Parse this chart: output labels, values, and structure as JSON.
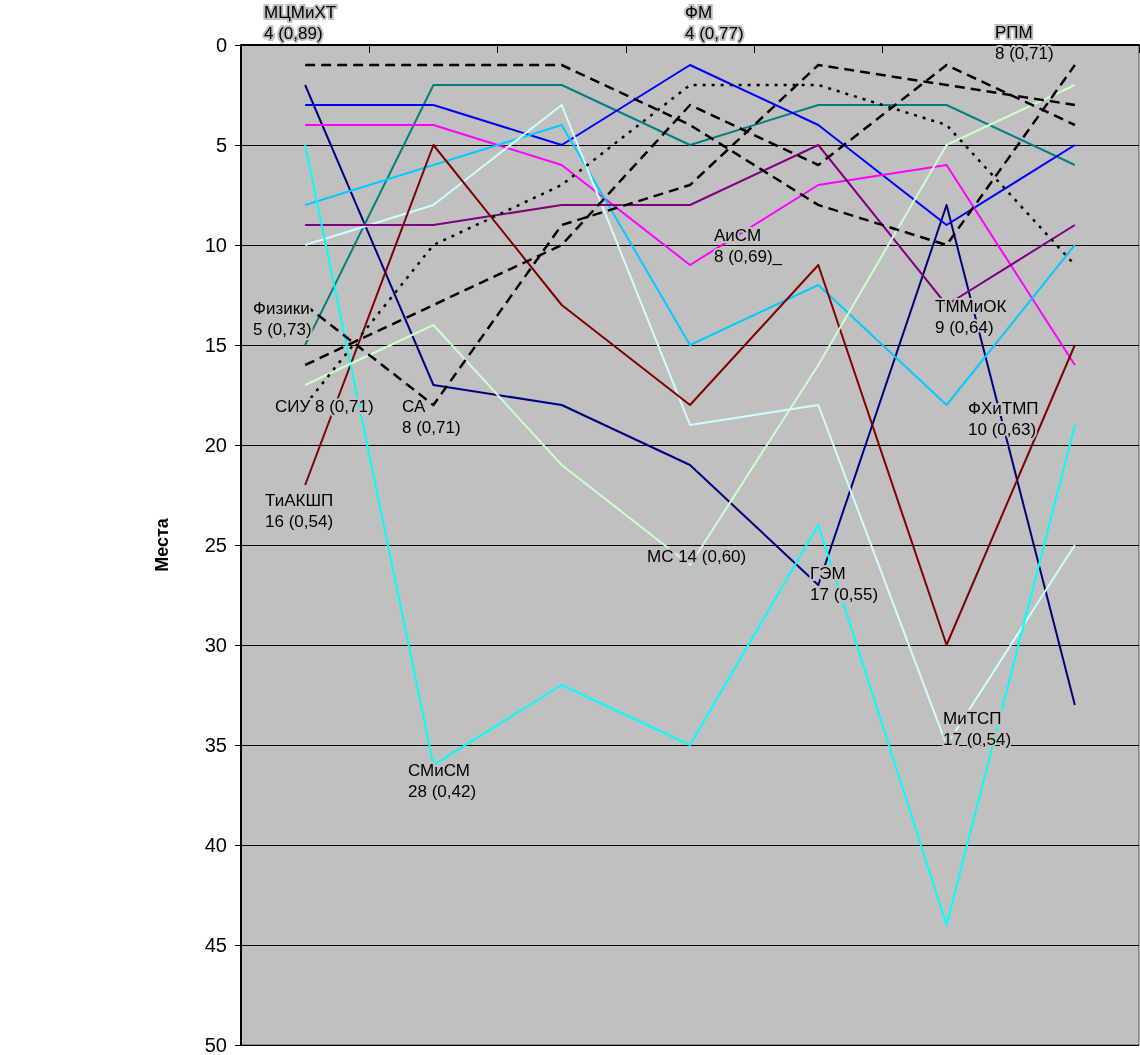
{
  "chart_data": {
    "type": "line",
    "ylabel": "Места",
    "categories": [
      null,
      null,
      null,
      null,
      null,
      null,
      null
    ],
    "ylim": [
      50,
      0
    ],
    "yticks": [
      0,
      5,
      10,
      15,
      20,
      25,
      30,
      35,
      40,
      45,
      50
    ],
    "grid": "y",
    "marker": "none",
    "line_style": "solid",
    "series": [
      {
        "color": "#000080",
        "values": [
          2,
          17,
          18,
          21,
          27,
          8,
          33
        ]
      },
      {
        "color": "#008080",
        "values": [
          15,
          2,
          2,
          5,
          3,
          3,
          6
        ]
      },
      {
        "color": "#0000ff",
        "values": [
          3,
          3,
          5,
          1,
          4,
          9,
          5
        ]
      },
      {
        "color": "#ff00ff",
        "values": [
          4,
          4,
          6,
          11,
          7,
          6,
          16
        ]
      },
      {
        "color": "#00ccff",
        "values": [
          8,
          6,
          4,
          15,
          12,
          18,
          10
        ]
      },
      {
        "color": "#ccffff",
        "values": [
          10,
          8,
          3,
          19,
          18,
          35,
          25
        ]
      },
      {
        "color": "#800080",
        "values": [
          9,
          9,
          8,
          8,
          5,
          13,
          9
        ]
      },
      {
        "color": "#800000",
        "values": [
          22,
          5,
          13,
          18,
          11,
          30,
          15
        ]
      },
      {
        "color": "#00ffff",
        "values": [
          5,
          36,
          32,
          35,
          24,
          44,
          19
        ]
      },
      {
        "color": "#ccffcc",
        "values": [
          17,
          14,
          21,
          26,
          16,
          5,
          2
        ]
      },
      {
        "color": "#000000",
        "line_style": "dashed",
        "values": [
          1,
          1,
          1,
          4,
          8,
          10,
          1
        ]
      },
      {
        "color": "#000000",
        "line_style": "dashed",
        "values": [
          16,
          13,
          10,
          3,
          6,
          1,
          4
        ]
      },
      {
        "color": "#000000",
        "line_style": "dotted",
        "values": [
          18,
          10,
          7,
          2,
          2,
          4,
          11
        ]
      },
      {
        "color": "#000000",
        "line_style": "dashed",
        "values": [
          13,
          18,
          9,
          7,
          1,
          2,
          3
        ]
      }
    ],
    "annotations": [
      "МЦМиХТ\n4 (0,89)",
      "ФМ\n4 (0,77)",
      "РПМ\n8 (0,71)",
      "Физики\n5 (0,73)",
      "СИУ 8 (0,71)",
      "СА\n8 (0,71)",
      "АиСМ\n8 (0,69)_",
      "ТММиОК\n9 (0,64)",
      "ФХиТМП\n10 (0,63)",
      "ТиАКШП\n16 (0,54)",
      "МС 14 (0,60)",
      "ГЭМ\n17 (0,55)",
      "СМиСМ\n28 (0,42)",
      "МиТСП\n17 (0,54)"
    ]
  }
}
